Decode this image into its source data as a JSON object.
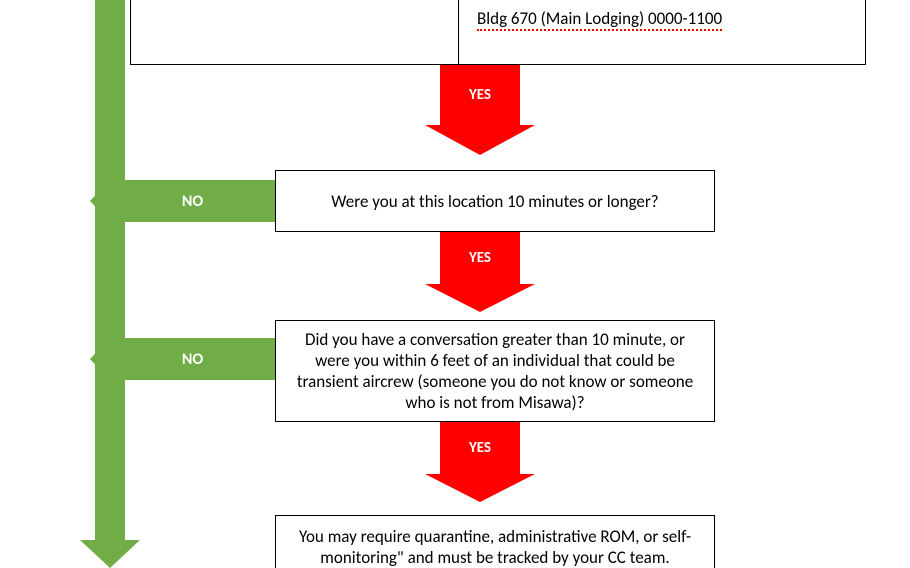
{
  "flow": {
    "yes_label": "YES",
    "no_label": "NO",
    "letters": {
      "o1": "O",
      "n": "N",
      "o2": "O"
    },
    "top_box_right_text": "Bldg 670 (Main Lodging) 0000-1100",
    "q1_text": "Were you at this location 10 minutes or longer?",
    "q2_text": "Did you have a conversation greater than 10 minute, or were you within 6 feet of an individual that could be transient aircrew (someone you do not know or someone who is not from Misawa)?",
    "result_text": "You may require quarantine, administrative ROM, or self-monitoring\" and must be tracked by your CC team."
  },
  "colors": {
    "green": "#70ad47",
    "red": "#ff0000",
    "white": "#ffffff",
    "black": "#000000"
  }
}
